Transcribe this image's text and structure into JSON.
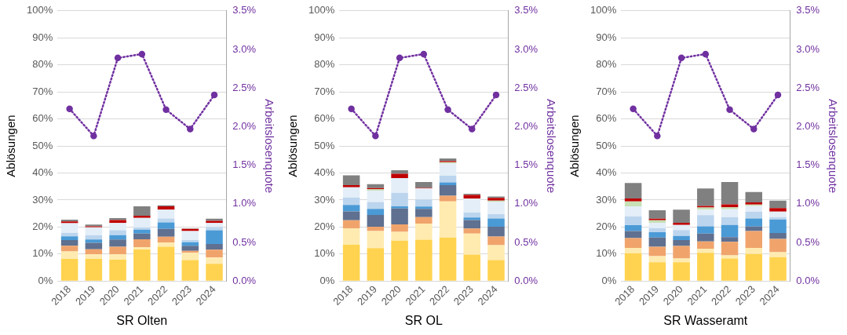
{
  "chart_data": [
    {
      "type": "bar",
      "stacked": true,
      "xlabel": "SR Olten",
      "ylabel": "Ablösungen",
      "y2label": "Arbeitslosenquote",
      "grid": "y",
      "legend": false,
      "categories": [
        "2018",
        "2019",
        "2020",
        "2021",
        "2022",
        "2023",
        "2024"
      ],
      "ylim": [
        0,
        100
      ],
      "yticks": [
        {
          "value": 0,
          "label": "0%"
        },
        {
          "value": 10,
          "label": "10%"
        },
        {
          "value": 20,
          "label": "20%"
        },
        {
          "value": 30,
          "label": "30%"
        },
        {
          "value": 40,
          "label": "40%"
        },
        {
          "value": 50,
          "label": "50%"
        },
        {
          "value": 60,
          "label": "60%"
        },
        {
          "value": 70,
          "label": "70%"
        },
        {
          "value": 80,
          "label": "80%"
        },
        {
          "value": 90,
          "label": "90%"
        },
        {
          "value": 100,
          "label": "100%"
        }
      ],
      "y2lim": [
        0,
        3.5
      ],
      "y2ticks": [
        {
          "value": 0,
          "label": "0.0%"
        },
        {
          "value": 0.5,
          "label": "0.5%"
        },
        {
          "value": 1,
          "label": "1.0%"
        },
        {
          "value": 1.5,
          "label": "1.5%"
        },
        {
          "value": 2,
          "label": "2.0%"
        },
        {
          "value": 2.5,
          "label": "2.5%"
        },
        {
          "value": 3,
          "label": "3.0%"
        },
        {
          "value": 3.5,
          "label": "3.5%"
        }
      ],
      "series": [
        {
          "color": "#ffd34f",
          "values": [
            8.2,
            8.2,
            7.9,
            11.7,
            12.7,
            7.8,
            6.4
          ]
        },
        {
          "color": "#ffebb0",
          "values": [
            2.8,
            1.7,
            2.0,
            0.9,
            1.6,
            2.7,
            2.3
          ]
        },
        {
          "color": "#f0a46c",
          "values": [
            2.1,
            1.9,
            2.8,
            2.9,
            2.1,
            0.7,
            2.9
          ]
        },
        {
          "color": "#5f7090",
          "values": [
            2.1,
            2.4,
            2.7,
            2.1,
            2.9,
            1.9,
            2.1
          ]
        },
        {
          "color": "#4a9ad6",
          "values": [
            1.4,
            1.2,
            1.6,
            1.4,
            2.4,
            1.3,
            5.1
          ]
        },
        {
          "color": "#bcd5ee",
          "values": [
            1.3,
            1.6,
            1.8,
            0.8,
            1.5,
            0.8,
            1.2
          ]
        },
        {
          "color": "#e4eef8",
          "values": [
            3.5,
            2.9,
            2.7,
            3.6,
            3.2,
            3.3,
            1.5
          ]
        },
        {
          "color": "#c7e0b5",
          "values": [
            0,
            0,
            0,
            0,
            0,
            0,
            0
          ]
        },
        {
          "color": "#c00000",
          "values": [
            0.7,
            0.4,
            1.1,
            0.8,
            1.3,
            0.8,
            0.8
          ]
        },
        {
          "color": "#808080",
          "values": [
            0.6,
            0.6,
            0.7,
            3.5,
            0.3,
            0.2,
            0.8
          ]
        },
        {
          "type": "line",
          "axis": "y2",
          "color": "#7030a0",
          "marker": "circle",
          "line_style": "dotted",
          "values": [
            2.23,
            1.88,
            2.89,
            2.94,
            2.22,
            1.97,
            2.41
          ]
        }
      ]
    },
    {
      "type": "bar",
      "stacked": true,
      "xlabel": "SR OL",
      "ylabel": "Ablösungen",
      "y2label": "Arbeitslosenquote",
      "grid": "y",
      "legend": false,
      "categories": [
        "2018",
        "2019",
        "2020",
        "2021",
        "2022",
        "2023",
        "2024"
      ],
      "ylim": [
        0,
        100
      ],
      "yticks": [
        {
          "value": 0,
          "label": "0%"
        },
        {
          "value": 10,
          "label": "10%"
        },
        {
          "value": 20,
          "label": "20%"
        },
        {
          "value": 30,
          "label": "30%"
        },
        {
          "value": 40,
          "label": "40%"
        },
        {
          "value": 50,
          "label": "50%"
        },
        {
          "value": 60,
          "label": "60%"
        },
        {
          "value": 70,
          "label": "70%"
        },
        {
          "value": 80,
          "label": "80%"
        },
        {
          "value": 90,
          "label": "90%"
        },
        {
          "value": 100,
          "label": "100%"
        }
      ],
      "y2lim": [
        0,
        3.5
      ],
      "y2ticks": [
        {
          "value": 0,
          "label": "0.0%"
        },
        {
          "value": 0.5,
          "label": "0.5%"
        },
        {
          "value": 1,
          "label": "1.0%"
        },
        {
          "value": 1.5,
          "label": "1.5%"
        },
        {
          "value": 2,
          "label": "2.0%"
        },
        {
          "value": 2.5,
          "label": "2.5%"
        },
        {
          "value": 3,
          "label": "3.0%"
        },
        {
          "value": 3.5,
          "label": "3.5%"
        }
      ],
      "series": [
        {
          "color": "#ffd34f",
          "values": [
            13.5,
            12.2,
            15.0,
            15.3,
            16.1,
            9.8,
            7.8
          ]
        },
        {
          "color": "#ffebb0",
          "values": [
            6.0,
            6.3,
            3.2,
            6.0,
            13.4,
            7.8,
            5.5
          ]
        },
        {
          "color": "#f0a46c",
          "values": [
            3.0,
            1.6,
            2.8,
            2.4,
            2.1,
            1.9,
            3.2
          ]
        },
        {
          "color": "#5f7090",
          "values": [
            3.3,
            4.4,
            5.9,
            3.0,
            3.9,
            3.1,
            3.6
          ]
        },
        {
          "color": "#4a9ad6",
          "values": [
            2.4,
            2.2,
            0.8,
            0.9,
            1.0,
            0.9,
            3.1
          ]
        },
        {
          "color": "#bcd5ee",
          "values": [
            2.7,
            2.6,
            5.0,
            2.6,
            2.5,
            1.9,
            1.6
          ]
        },
        {
          "color": "#e4eef8",
          "values": [
            3.8,
            4.2,
            5.4,
            4.1,
            4.5,
            5.2,
            4.5
          ]
        },
        {
          "color": "#c7e0b5",
          "values": [
            0,
            0.5,
            0,
            0,
            0.5,
            0,
            0.5
          ]
        },
        {
          "color": "#c00000",
          "values": [
            0.8,
            0.4,
            1.6,
            0.2,
            0.4,
            1.3,
            1.0
          ]
        },
        {
          "color": "#808080",
          "values": [
            3.6,
            1.5,
            1.3,
            2.2,
            1.0,
            0.4,
            0.5
          ]
        },
        {
          "type": "line",
          "axis": "y2",
          "color": "#7030a0",
          "marker": "circle",
          "line_style": "dotted",
          "values": [
            2.23,
            1.88,
            2.89,
            2.94,
            2.22,
            1.97,
            2.41
          ]
        }
      ]
    },
    {
      "type": "bar",
      "stacked": true,
      "xlabel": "SR Wasseramt",
      "ylabel": "Ablösungen",
      "y2label": "Arbeitslosenquote",
      "grid": "y",
      "legend": false,
      "categories": [
        "2018",
        "2019",
        "2020",
        "2021",
        "2022",
        "2023",
        "2024"
      ],
      "ylim": [
        0,
        100
      ],
      "yticks": [
        {
          "value": 0,
          "label": "0%"
        },
        {
          "value": 10,
          "label": "10%"
        },
        {
          "value": 20,
          "label": "20%"
        },
        {
          "value": 30,
          "label": "30%"
        },
        {
          "value": 40,
          "label": "40%"
        },
        {
          "value": 50,
          "label": "50%"
        },
        {
          "value": 60,
          "label": "60%"
        },
        {
          "value": 70,
          "label": "70%"
        },
        {
          "value": 80,
          "label": "80%"
        },
        {
          "value": 90,
          "label": "90%"
        },
        {
          "value": 100,
          "label": "100%"
        }
      ],
      "y2lim": [
        0,
        3.5
      ],
      "y2ticks": [
        {
          "value": 0,
          "label": "0.0%"
        },
        {
          "value": 0.5,
          "label": "0.5%"
        },
        {
          "value": 1,
          "label": "1.0%"
        },
        {
          "value": 1.5,
          "label": "1.5%"
        },
        {
          "value": 2,
          "label": "2.0%"
        },
        {
          "value": 2.5,
          "label": "2.5%"
        },
        {
          "value": 3,
          "label": "3.0%"
        },
        {
          "value": 3.5,
          "label": "3.5%"
        }
      ],
      "series": [
        {
          "color": "#ffd34f",
          "values": [
            10.3,
            7.0,
            7.0,
            10.5,
            8.4,
            10.0,
            8.9
          ]
        },
        {
          "color": "#ffebb0",
          "values": [
            2.0,
            2.2,
            1.4,
            1.5,
            1.1,
            2.3,
            1.8
          ]
        },
        {
          "color": "#f0a46c",
          "values": [
            3.6,
            3.5,
            4.6,
            2.7,
            5.0,
            6.2,
            4.9
          ]
        },
        {
          "color": "#5f7090",
          "values": [
            2.6,
            3.4,
            2.2,
            2.9,
            1.8,
            1.7,
            2.2
          ]
        },
        {
          "color": "#4a9ad6",
          "values": [
            2.2,
            2.0,
            1.5,
            2.7,
            4.5,
            3.0,
            5.0
          ]
        },
        {
          "color": "#bcd5ee",
          "values": [
            3.3,
            1.5,
            2.2,
            4.1,
            2.9,
            2.5,
            0.9
          ]
        },
        {
          "color": "#e4eef8",
          "values": [
            3.7,
            2.0,
            1.9,
            2.0,
            2.9,
            2.1,
            2.0
          ]
        },
        {
          "color": "#c7e0b5",
          "values": [
            1.8,
            0.9,
            0,
            0.8,
            0.7,
            0.5,
            0
          ]
        },
        {
          "color": "#c00000",
          "values": [
            1.1,
            0.6,
            0.8,
            0.6,
            1.1,
            0.8,
            1.3
          ]
        },
        {
          "color": "#808080",
          "values": [
            5.7,
            3.1,
            4.8,
            6.5,
            8.3,
            3.9,
            2.8
          ]
        },
        {
          "type": "line",
          "axis": "y2",
          "color": "#7030a0",
          "marker": "circle",
          "line_style": "dotted",
          "values": [
            2.23,
            1.88,
            2.89,
            2.94,
            2.22,
            1.97,
            2.41
          ]
        }
      ]
    }
  ]
}
